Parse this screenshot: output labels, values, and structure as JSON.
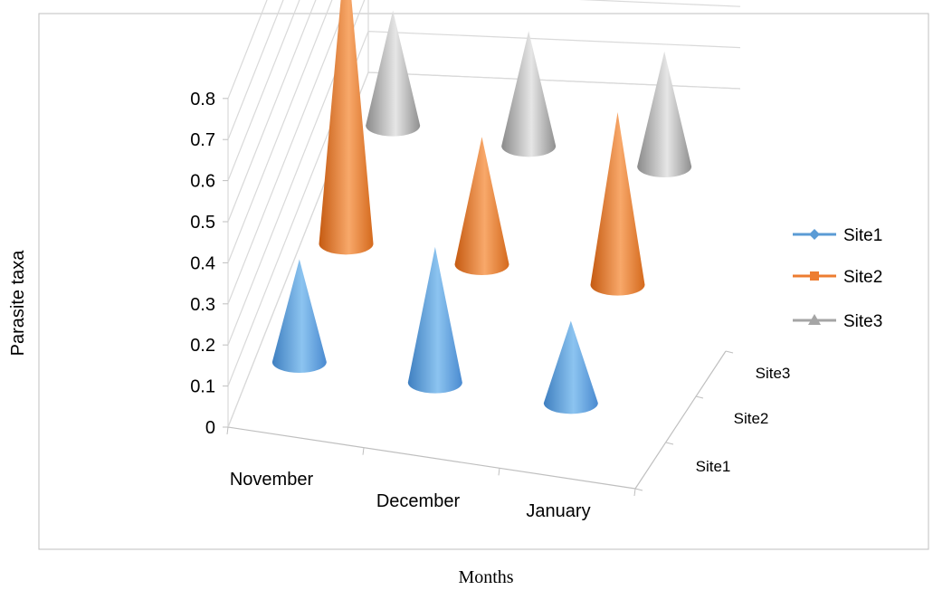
{
  "chart_data": {
    "type": "bar",
    "style": "3d-cone",
    "title": "",
    "xlabel": "Months",
    "ylabel": "Parasite taxa",
    "zlabel": "",
    "categories": [
      "November",
      "December",
      "January"
    ],
    "depth_categories": [
      "Site1",
      "Site2",
      "Site3"
    ],
    "ylim": [
      0,
      0.8
    ],
    "yticks": [
      "0",
      "0.1",
      "0.2",
      "0.3",
      "0.4",
      "0.5",
      "0.6",
      "0.7",
      "0.8"
    ],
    "grid": true,
    "legend_position": "right",
    "series": [
      {
        "name": "Site1",
        "color": "#5b9bd5",
        "marker": "diamond",
        "values": [
          0.25,
          0.33,
          0.2
        ]
      },
      {
        "name": "Site2",
        "color": "#ed7d31",
        "marker": "square",
        "values": [
          0.74,
          0.31,
          0.42
        ]
      },
      {
        "name": "Site3",
        "color": "#a5a5a5",
        "marker": "triangle",
        "values": [
          0.28,
          0.28,
          0.28
        ]
      }
    ]
  }
}
